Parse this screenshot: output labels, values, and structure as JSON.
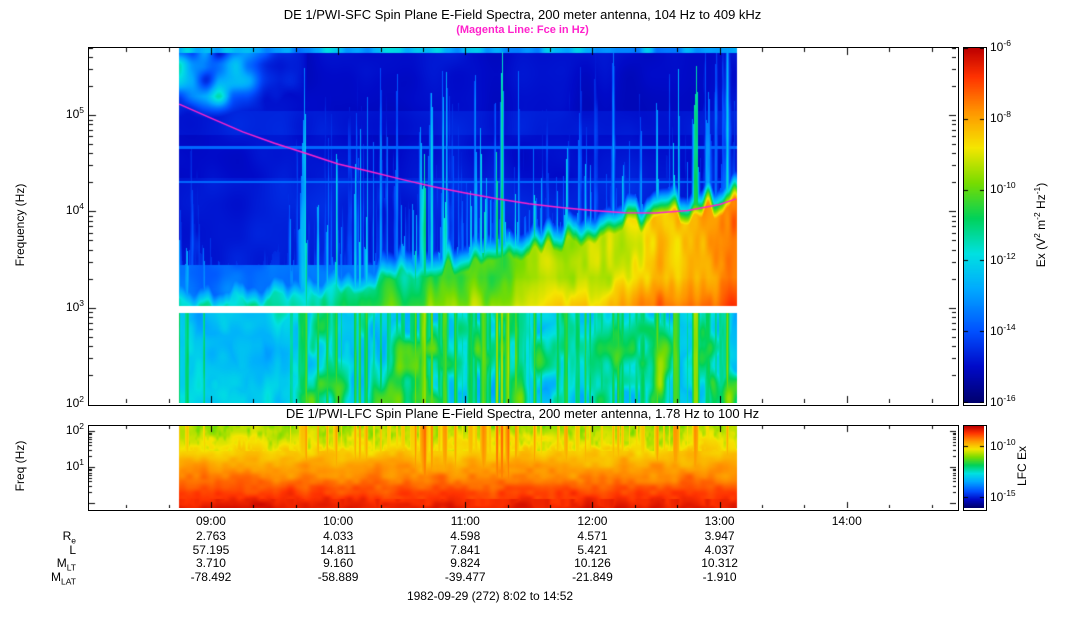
{
  "figure": {
    "background": "#ffffff",
    "accent_magenta": "#ff22cc",
    "footer": "1982-09-29 (272) 8:02 to 14:52"
  },
  "sfc": {
    "title": "DE 1/PWI-SFC  Spin Plane E-Field Spectra, 200 meter antenna, 104 Hz to 409 kHz",
    "subtitle": "(Magenta Line: Fce in Hz)",
    "ylabel": "Frequency (Hz)",
    "ytick_exponents": [
      5,
      4,
      3,
      2
    ],
    "colorbar": {
      "tick_exponents": [
        -6,
        -8,
        -10,
        -12,
        -14,
        -16
      ],
      "label_parts": [
        {
          "t": "Ex (V"
        },
        {
          "sup": "2"
        },
        {
          "t": " m"
        },
        {
          "sup": "-2"
        },
        {
          "t": " Hz"
        },
        {
          "sup": "-1"
        },
        {
          "t": ")"
        }
      ]
    }
  },
  "lfc": {
    "title": "DE 1/PWI-LFC  Spin Plane E-Field Spectra, 200 meter antenna, 1.78 Hz to 100 Hz",
    "ylabel": "Freq (Hz)",
    "ytick_exponents": [
      2,
      1
    ],
    "colorbar": {
      "tick_exponents": [
        -10,
        -15
      ],
      "label": "LFC Ex"
    }
  },
  "time_axis": {
    "tick_labels": [
      "09:00",
      "10:00",
      "11:00",
      "12:00",
      "13:00",
      "14:00"
    ],
    "tick_hours": [
      9,
      10,
      11,
      12,
      13,
      14
    ],
    "start_hour": 8.033,
    "end_hour": 14.867
  },
  "ephemeris": {
    "rows": [
      {
        "label": "R",
        "sub": "e",
        "values": [
          "2.763",
          "4.033",
          "4.598",
          "4.571",
          "3.947"
        ]
      },
      {
        "label": "L",
        "sub": "",
        "values": [
          "57.195",
          "14.811",
          "7.841",
          "5.421",
          "4.037"
        ]
      },
      {
        "label": "M",
        "sub": "LT",
        "values": [
          "3.710",
          "9.160",
          "9.824",
          "10.126",
          "10.312"
        ]
      },
      {
        "label": "M",
        "sub": "LAT",
        "values": [
          "-78.492",
          "-58.889",
          "-39.477",
          "-21.849",
          "-1.910"
        ]
      }
    ]
  },
  "colormap": [
    {
      "v": 0.0,
      "c": [
        0,
        0,
        110
      ]
    },
    {
      "v": 0.1,
      "c": [
        0,
        10,
        200
      ]
    },
    {
      "v": 0.2,
      "c": [
        0,
        80,
        255
      ]
    },
    {
      "v": 0.32,
      "c": [
        0,
        170,
        255
      ]
    },
    {
      "v": 0.42,
      "c": [
        0,
        225,
        225
      ]
    },
    {
      "v": 0.52,
      "c": [
        0,
        210,
        90
      ]
    },
    {
      "v": 0.62,
      "c": [
        120,
        220,
        0
      ]
    },
    {
      "v": 0.72,
      "c": [
        245,
        230,
        0
      ]
    },
    {
      "v": 0.82,
      "c": [
        255,
        150,
        0
      ]
    },
    {
      "v": 0.92,
      "c": [
        255,
        50,
        0
      ]
    },
    {
      "v": 1.0,
      "c": [
        190,
        0,
        0
      ]
    }
  ],
  "chart_data": [
    {
      "type": "heatmap",
      "name": "sfc-spectrogram",
      "title": "DE 1/PWI-SFC  Spin Plane E-Field Spectra, 200 meter antenna, 104 Hz to 409 kHz",
      "ylabel": "Frequency (Hz)",
      "y_scale": "log",
      "y_range_hz": [
        104,
        409000
      ],
      "y_ticks_hz": [
        100,
        1000,
        10000,
        100000
      ],
      "x_tick_labels": [
        "09:00",
        "10:00",
        "11:00",
        "12:00",
        "13:00",
        "14:00"
      ],
      "time_range_ut": "8:02 to 14:52",
      "data_extent_hours": [
        8.75,
        13.13
      ],
      "receiver_gap_hz": [
        870,
        1050
      ],
      "color_scale": {
        "quantity": "Ex",
        "units": "V^2 m^-2 Hz^-1",
        "scale": "log",
        "range_exponents": [
          -16,
          -6
        ],
        "palette": "rainbow"
      },
      "overlay_line": {
        "name": "Fce electron cyclotron frequency",
        "color": "#ff22cc",
        "points_hour_hz": [
          [
            8.75,
            130000
          ],
          [
            9.0,
            93000
          ],
          [
            9.25,
            67000
          ],
          [
            9.5,
            51000
          ],
          [
            9.75,
            40000
          ],
          [
            10.0,
            31000
          ],
          [
            10.25,
            26000
          ],
          [
            10.5,
            21500
          ],
          [
            10.75,
            18000
          ],
          [
            11.0,
            15500
          ],
          [
            11.25,
            13500
          ],
          [
            11.5,
            12000
          ],
          [
            11.75,
            11000
          ],
          [
            12.0,
            10200
          ],
          [
            12.25,
            9700
          ],
          [
            12.5,
            9600
          ],
          [
            12.75,
            10200
          ],
          [
            13.0,
            11800
          ],
          [
            13.13,
            13500
          ]
        ]
      },
      "features": [
        "dark blue low-intensity background above 10 kHz",
        "patchy cyan auroral kilometric radiation near 100-400 kHz before 09:30",
        "dense vertical broadband burst striations from ~09:40 to ~13:05",
        "intense yellow-orange-red emission band rising from ~1 kHz at 10:00 to ~10 kHz by 13:00",
        "white horizontal receiver gap near 1 kHz"
      ]
    },
    {
      "type": "heatmap",
      "name": "lfc-spectrogram",
      "title": "DE 1/PWI-LFC  Spin Plane E-Field Spectra, 200 meter antenna, 1.78 Hz to 100 Hz",
      "ylabel": "Freq (Hz)",
      "y_scale": "log",
      "y_range_hz": [
        1.78,
        100
      ],
      "y_ticks_hz": [
        10,
        100
      ],
      "x_tick_labels": [
        "09:00",
        "10:00",
        "11:00",
        "12:00",
        "13:00",
        "14:00"
      ],
      "time_range_ut": "8:02 to 14:52",
      "data_extent_hours": [
        8.75,
        13.13
      ],
      "color_scale": {
        "quantity": "LFC Ex",
        "scale": "log",
        "range_exponents": [
          -16,
          -8
        ],
        "palette": "rainbow"
      },
      "features": [
        "broadband yellow-to-red emission, most intense (dark red) below ~5 Hz",
        "full-height red burst columns near 09:50 and 10:50-11:15"
      ]
    }
  ]
}
